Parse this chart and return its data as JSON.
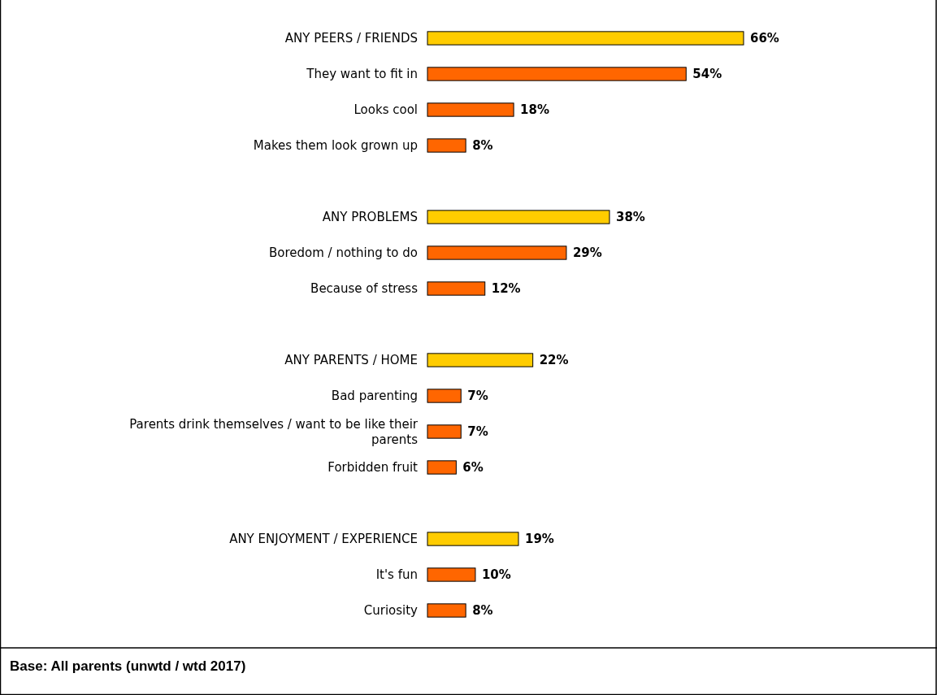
{
  "chart_data": {
    "type": "bar",
    "orientation": "horizontal",
    "categories": [
      "ANY PEERS / FRIENDS",
      "They want to fit in",
      "Looks cool",
      "Makes them look grown up",
      null,
      "ANY PROBLEMS",
      "Boredom / nothing to do",
      "Because of stress",
      null,
      "ANY PARENTS / HOME",
      "Bad parenting",
      "Parents drink themselves / want to be like their parents",
      "Forbidden fruit",
      null,
      "ANY ENJOYMENT / EXPERIENCE",
      "It's fun",
      "Curiosity"
    ],
    "values": [
      66,
      54,
      18,
      8,
      null,
      38,
      29,
      12,
      null,
      22,
      7,
      7,
      6,
      null,
      19,
      10,
      8
    ],
    "colors": [
      "#ffcc00",
      "#ff6600",
      "#ff6600",
      "#ff6600",
      null,
      "#ffcc00",
      "#ff6600",
      "#ff6600",
      null,
      "#ffcc00",
      "#ff6600",
      "#ff6600",
      "#ff6600",
      null,
      "#ffcc00",
      "#ff6600",
      "#ff6600"
    ],
    "value_labels": [
      "66%",
      "54%",
      "18%",
      "8%",
      null,
      "38%",
      "29%",
      "12%",
      null,
      "22%",
      "7%",
      "7%",
      "6%",
      null,
      "19%",
      "10%",
      "8%"
    ],
    "annotations": [
      "Base: All parents (unwtd / wtd 2017)"
    ]
  }
}
